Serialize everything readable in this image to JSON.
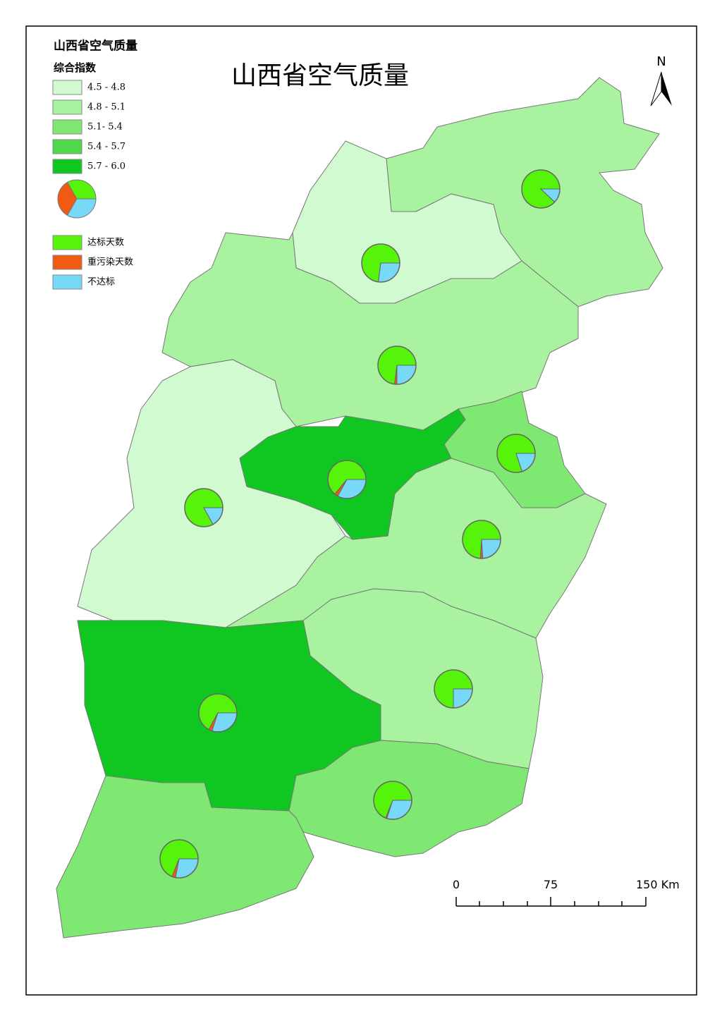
{
  "title": "山西省空气质量",
  "north": "N",
  "legend": {
    "title": "山西省空气质量",
    "subtitle": "综合指数",
    "classes": [
      {
        "label": "4.5 - 4.8",
        "color": "#d2fad0"
      },
      {
        "label": "4.8 - 5.1",
        "color": "#a9f2a0"
      },
      {
        "label": "5.1- 5.4",
        "color": "#7ee872"
      },
      {
        "label": "5.4 - 5.7",
        "color": "#4fd84a"
      },
      {
        "label": "5.7 - 6.0",
        "color": "#10c620"
      }
    ],
    "pie_legend": [
      {
        "label": "达标天数",
        "color": "#55f40a"
      },
      {
        "label": "重污染天数",
        "color": "#f05a12"
      },
      {
        "label": "不达标",
        "color": "#78d8f8"
      }
    ]
  },
  "scale": {
    "labels": [
      "0",
      "75",
      "150 Km"
    ]
  },
  "pies": [
    {
      "values": [
        88,
        0,
        12
      ]
    },
    {
      "values": [
        73,
        0,
        27
      ]
    },
    {
      "values": [
        73,
        2,
        25
      ]
    },
    {
      "values": [
        80,
        0,
        20
      ]
    },
    {
      "values": [
        64,
        3,
        33
      ]
    },
    {
      "values": [
        83,
        0,
        17
      ]
    },
    {
      "values": [
        74,
        2,
        24
      ]
    },
    {
      "values": [
        67,
        3,
        30
      ]
    },
    {
      "values": [
        75,
        0,
        25
      ]
    },
    {
      "values": [
        69,
        1,
        30
      ]
    },
    {
      "values": [
        69,
        3,
        28
      ]
    }
  ]
}
